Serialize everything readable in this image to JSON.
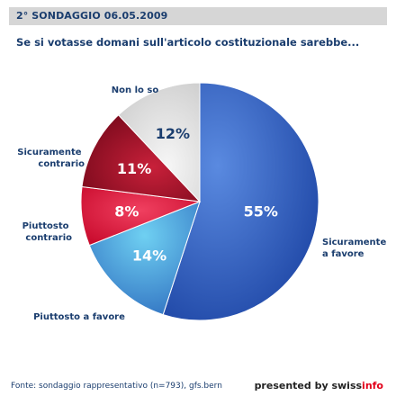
{
  "header": {
    "title": "2° SONDAGGIO 06.05.2009"
  },
  "question": "Se si votasse domani sull'articolo costituzionale sarebbe...",
  "chart_data": {
    "type": "pie",
    "title": "Se si votasse domani sull'articolo costituzionale sarebbe...",
    "slices": [
      {
        "label": "Sicuramente a favore",
        "value": 55,
        "display": "55%",
        "color": "#2f5fbf"
      },
      {
        "label": "Piuttosto a favore",
        "value": 14,
        "display": "14%",
        "color": "#4a9ad8"
      },
      {
        "label": "Piuttosto contrario",
        "value": 8,
        "display": "8%",
        "color": "#e2183c"
      },
      {
        "label": "Sicuramente contrario",
        "value": 11,
        "display": "11%",
        "color": "#a80f28"
      },
      {
        "label": "Non lo so",
        "value": 12,
        "display": "12%",
        "color": "#e4e4e4"
      }
    ]
  },
  "footer": {
    "source": "Fonte: sondaggio rappresentativo (n=793), gfs.bern",
    "presented_prefix": "presented by ",
    "brand_swiss": "swiss",
    "brand_info": "info"
  }
}
